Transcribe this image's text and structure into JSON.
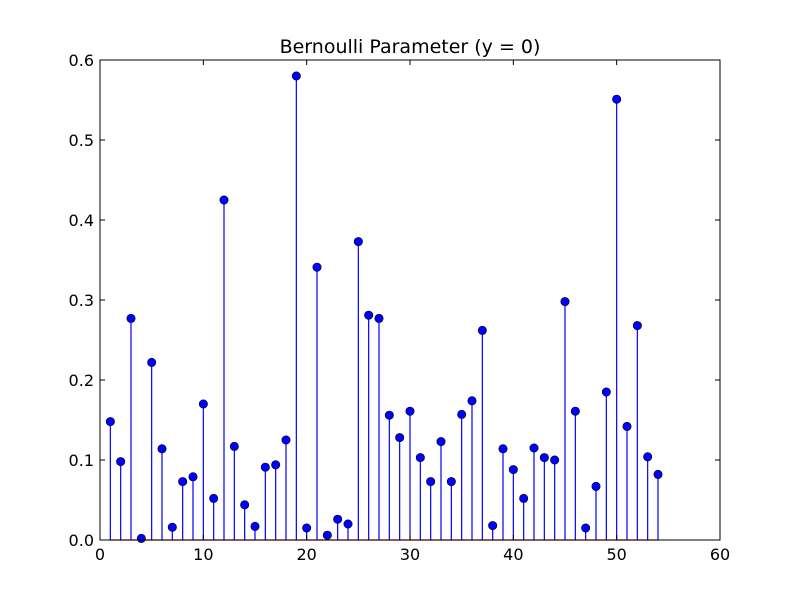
{
  "chart_data": {
    "type": "stem",
    "title": "Bernoulli Parameter (y = 0)",
    "xlabel": "",
    "ylabel": "",
    "xlim": [
      0,
      60
    ],
    "ylim": [
      0,
      0.6
    ],
    "xticks": [
      0,
      10,
      20,
      30,
      40,
      50,
      60
    ],
    "xtick_labels": [
      "0",
      "10",
      "20",
      "30",
      "40",
      "50",
      "60"
    ],
    "yticks": [
      0.0,
      0.1,
      0.2,
      0.3,
      0.4,
      0.5,
      0.6
    ],
    "ytick_labels": [
      "0.0",
      "0.1",
      "0.2",
      "0.3",
      "0.4",
      "0.5",
      "0.6"
    ],
    "grid": false,
    "colors": {
      "stem": "#0000ff",
      "marker": "#0000ff",
      "baseline": "#ff0000"
    },
    "series": [
      {
        "x": [
          1,
          2,
          3,
          4,
          5,
          6,
          7,
          8,
          9,
          10,
          11,
          12,
          13,
          14,
          15,
          16,
          17,
          18,
          19,
          20,
          21,
          22,
          23,
          24,
          25,
          26,
          27,
          28,
          29,
          30,
          31,
          32,
          33,
          34,
          35,
          36,
          37,
          38,
          39,
          40,
          41,
          42,
          43,
          44,
          45,
          46,
          47,
          48,
          49,
          50,
          51,
          52,
          53,
          54
        ],
        "values": [
          0.148,
          0.098,
          0.277,
          0.002,
          0.222,
          0.114,
          0.016,
          0.073,
          0.079,
          0.17,
          0.052,
          0.425,
          0.117,
          0.044,
          0.017,
          0.091,
          0.094,
          0.125,
          0.58,
          0.015,
          0.341,
          0.006,
          0.026,
          0.02,
          0.373,
          0.281,
          0.277,
          0.156,
          0.128,
          0.161,
          0.103,
          0.073,
          0.123,
          0.073,
          0.157,
          0.174,
          0.262,
          0.018,
          0.114,
          0.088,
          0.052,
          0.115,
          0.103,
          0.1,
          0.298,
          0.161,
          0.015,
          0.067,
          0.185,
          0.551,
          0.142,
          0.268,
          0.104,
          0.082
        ]
      }
    ]
  }
}
